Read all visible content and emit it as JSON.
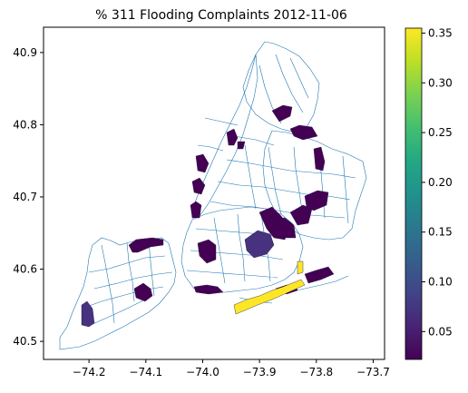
{
  "title": "% 311 Flooding Complaints 2012-11-06",
  "map": {
    "x_range": [
      -74.28,
      -73.68
    ],
    "y_range": [
      40.475,
      40.935
    ],
    "x_ticks": [
      -74.2,
      -74.1,
      -74.0,
      -73.9,
      -73.8,
      -73.7
    ],
    "y_ticks": [
      40.5,
      40.6,
      40.7,
      40.8,
      40.9
    ],
    "boundary_color": "#1f77b4",
    "background": "#ffffff"
  },
  "colorbar": {
    "colormap": "viridis",
    "range": [
      0.022,
      0.355
    ],
    "ticks": [
      0.05,
      0.1,
      0.15,
      0.2,
      0.25,
      0.3,
      0.35
    ]
  },
  "chart_data": {
    "type": "choropleth",
    "title": "% 311 Flooding Complaints 2012-11-06",
    "xlim": [
      -74.28,
      -73.68
    ],
    "ylim": [
      40.475,
      40.935
    ],
    "x_ticks": [
      "−74.2",
      "−74.1",
      "−74.0",
      "−73.9",
      "−73.8",
      "−73.7"
    ],
    "y_ticks": [
      "40.5",
      "40.6",
      "40.7",
      "40.8",
      "40.9"
    ],
    "colorbar_ticks": [
      "0.05",
      "0.10",
      "0.15",
      "0.20",
      "0.25",
      "0.30",
      "0.35"
    ],
    "regions": [
      {
        "lon": -74.207,
        "lat": 40.543,
        "value": 0.09
      },
      {
        "lon": -74.12,
        "lat": 40.58,
        "value": 0.03
      },
      {
        "lon": -74.12,
        "lat": 40.64,
        "value": 0.03
      },
      {
        "lon": -74.01,
        "lat": 40.62,
        "value": 0.03
      },
      {
        "lon": -74.0,
        "lat": 40.584,
        "value": 0.03
      },
      {
        "lon": -73.905,
        "lat": 40.628,
        "value": 0.04
      },
      {
        "lon": -73.89,
        "lat": 40.68,
        "value": 0.03
      },
      {
        "lon": -73.87,
        "lat": 40.66,
        "value": 0.03
      },
      {
        "lon": -73.82,
        "lat": 40.68,
        "value": 0.03
      },
      {
        "lon": -73.8,
        "lat": 40.71,
        "value": 0.03
      },
      {
        "lon": -73.83,
        "lat": 40.75,
        "value": 0.03
      },
      {
        "lon": -73.82,
        "lat": 40.786,
        "value": 0.03
      },
      {
        "lon": -73.865,
        "lat": 40.82,
        "value": 0.03
      },
      {
        "lon": -73.958,
        "lat": 40.77,
        "value": 0.03
      },
      {
        "lon": -73.998,
        "lat": 40.735,
        "value": 0.03
      },
      {
        "lon": -74.01,
        "lat": 40.7,
        "value": 0.03
      },
      {
        "lon": -74.008,
        "lat": 40.665,
        "value": 0.03
      },
      {
        "lon": -73.8,
        "lat": 40.59,
        "value": 0.03
      },
      {
        "lon": -73.875,
        "lat": 40.565,
        "value": 0.355
      },
      {
        "lon": -73.835,
        "lat": 40.602,
        "value": 0.355
      }
    ]
  }
}
